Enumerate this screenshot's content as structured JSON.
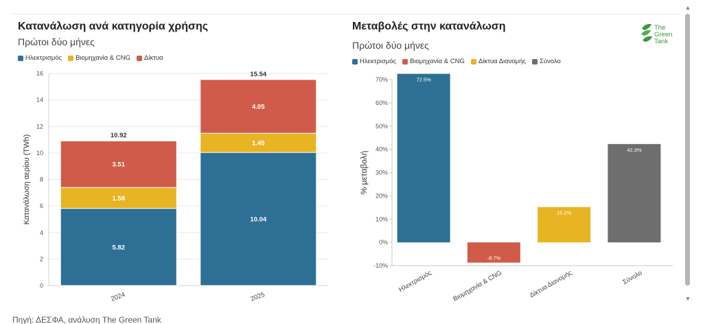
{
  "source": "Πηγή: ΔΕΣΦΑ, ανάλυση The Green Tank",
  "logo": {
    "text": "The\nGreen\nTank",
    "icon": "green-tank-leaf-icon",
    "color": "#3a9a3a"
  },
  "scroll": {
    "up": "▲",
    "down": "▼"
  },
  "charts": {
    "left": {
      "title": "Κατανάλωση ανά κατηγορία χρήσης",
      "subtitle": "Πρώτοι δύο μήνες",
      "legend": [
        {
          "name": "Ηλεκτρισμός",
          "color": "#2e6f95"
        },
        {
          "name": "Βιομηχανία & CNG",
          "color": "#e8b423"
        },
        {
          "name": "Δίκτυα",
          "color": "#d05b4a"
        }
      ]
    },
    "right": {
      "title": "Μεταβολές στην κατανάλωση",
      "subtitle": "Πρώτοι δύο μήνες",
      "legend": [
        {
          "name": "Ηλεκτρισμός",
          "color": "#2e6f95"
        },
        {
          "name": "Βιομηχανία & CNG",
          "color": "#d05b4a"
        },
        {
          "name": "Δίκτυα Διανομής",
          "color": "#e8b423"
        },
        {
          "name": "Σύνολο",
          "color": "#6e6e6e"
        }
      ]
    }
  },
  "chart_data": [
    {
      "type": "bar",
      "stacked": true,
      "title": "Κατανάλωση ανά κατηγορία χρήσης",
      "subtitle": "Πρώτοι δύο μήνες",
      "categories": [
        "2024",
        "2025"
      ],
      "series": [
        {
          "name": "Ηλεκτρισμός",
          "color": "#2e6f95",
          "values": [
            5.82,
            10.04
          ],
          "labels": [
            "5.82",
            "10.04"
          ]
        },
        {
          "name": "Βιομηχανία & CNG",
          "color": "#e8b423",
          "values": [
            1.58,
            1.45
          ],
          "labels": [
            "1.58",
            "1.45"
          ]
        },
        {
          "name": "Δίκτυα",
          "color": "#d05b4a",
          "values": [
            3.51,
            4.05
          ],
          "labels": [
            "3.51",
            "4.05"
          ]
        }
      ],
      "totals": [
        10.92,
        15.54
      ],
      "total_labels": [
        "10.92",
        "15.54"
      ],
      "ylabel": "Κατανάλωση αερίου (TWh)",
      "xlabel": "",
      "ylim": [
        0,
        16
      ],
      "yticks": [
        0,
        2,
        4,
        6,
        8,
        10,
        12,
        14,
        16
      ],
      "ytick_labels": [
        "0",
        "2",
        "4",
        "6",
        "8",
        "10",
        "12",
        "14",
        "16"
      ],
      "grid": true,
      "legend_position": "top-left"
    },
    {
      "type": "bar",
      "title": "Μεταβολές στην κατανάλωση",
      "subtitle": "Πρώτοι δύο μήνες",
      "categories": [
        "Ηλεκτρισμός",
        "Βιομηχανία & CNG",
        "Δίκτυα Διανομής",
        "Σύνολο"
      ],
      "values": [
        72.5,
        -8.7,
        15.2,
        42.3
      ],
      "labels": [
        "72.5%",
        "-8.7%",
        "15.2%",
        "42.3%"
      ],
      "colors": [
        "#2e6f95",
        "#d05b4a",
        "#e8b423",
        "#6e6e6e"
      ],
      "ylabel": "% μεταβολή",
      "xlabel": "",
      "ylim": [
        -10,
        70
      ],
      "yticks": [
        -10,
        0,
        10,
        20,
        30,
        40,
        50,
        60,
        70
      ],
      "ytick_labels": [
        "-10%",
        "0%",
        "10%",
        "20%",
        "30%",
        "40%",
        "50%",
        "60%",
        "70%"
      ],
      "grid": false,
      "legend_position": "top-left"
    }
  ]
}
